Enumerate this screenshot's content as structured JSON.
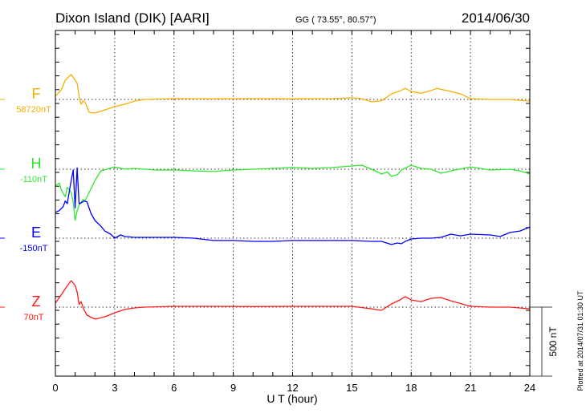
{
  "header": {
    "title": "Dixon Island (DIK)  [AARI]",
    "coords": "GG ( 73.55°,  80.57°)",
    "date": "2014/06/30"
  },
  "footer": {
    "plotted": "Plotted at 2014/07/31 01:30 UT",
    "scale_label": "500 nT"
  },
  "chart_data": {
    "type": "line",
    "title": "Dixon Island (DIK)  [AARI]",
    "xlabel": "U T (hour)",
    "xlim": [
      0,
      24
    ],
    "xticks": [
      "0",
      "3",
      "6",
      "9",
      "12",
      "15",
      "18",
      "21",
      "24"
    ],
    "scale_nT": 500,
    "grid": true,
    "series": [
      {
        "name": "F",
        "baseline": "58720nT",
        "color": "#f5b000",
        "x": [
          0,
          0.3,
          0.5,
          0.8,
          1.0,
          1.1,
          1.2,
          1.3,
          1.4,
          1.5,
          1.7,
          2.0,
          2.5,
          3.0,
          3.5,
          4.0,
          4.5,
          6,
          8,
          10,
          12,
          14,
          15,
          15.5,
          16,
          16.3,
          16.5,
          17,
          17.4,
          17.7,
          18,
          18.5,
          19,
          19.3,
          20,
          20.5,
          21,
          22,
          23,
          24
        ],
        "y": [
          23,
          70,
          140,
          180,
          140,
          116,
          23,
          -35,
          -10,
          -20,
          -93,
          -99,
          -76,
          -52,
          -35,
          -12,
          0,
          6,
          4,
          6,
          4,
          6,
          12,
          5,
          -17,
          -12,
          -10,
          40,
          60,
          80,
          58,
          45,
          64,
          80,
          58,
          40,
          6,
          0,
          0,
          -12
        ]
      },
      {
        "name": "H",
        "baseline": "-110nT",
        "color": "#2ee82e",
        "x": [
          0,
          0.2,
          0.3,
          0.5,
          0.6,
          0.8,
          0.9,
          1.0,
          1.1,
          1.2,
          1.4,
          1.5,
          1.7,
          2.0,
          2.3,
          2.6,
          3.0,
          3.5,
          4,
          5,
          6,
          7,
          8,
          9,
          10,
          11,
          12,
          13,
          14,
          15,
          15.5,
          16,
          16.3,
          16.5,
          16.8,
          17,
          17.3,
          17.5,
          18,
          18.5,
          19,
          19.5,
          19.8,
          20,
          21,
          22,
          23,
          23.5,
          24
        ],
        "y": [
          -120,
          -100,
          -150,
          -200,
          -130,
          -170,
          -240,
          -370,
          -300,
          -260,
          -220,
          -230,
          -170,
          -82,
          -12,
          0,
          17,
          0,
          6,
          -6,
          -6,
          -12,
          -17,
          -6,
          0,
          6,
          12,
          6,
          12,
          23,
          29,
          0,
          -20,
          -35,
          -20,
          -52,
          -40,
          -6,
          29,
          6,
          0,
          -29,
          -20,
          -12,
          17,
          -6,
          0,
          -12,
          -35
        ]
      },
      {
        "name": "E",
        "baseline": "-150nT",
        "color": "#0000ff",
        "x": [
          0,
          0.2,
          0.4,
          0.5,
          0.6,
          0.8,
          0.9,
          1.0,
          1.1,
          1.2,
          1.3,
          1.45,
          1.6,
          1.8,
          2.0,
          2.3,
          2.5,
          2.8,
          3.0,
          3.3,
          3.5,
          4,
          5,
          6,
          7,
          8,
          9,
          10,
          11,
          12,
          13,
          14,
          15,
          16,
          16.5,
          17,
          17.3,
          17.5,
          17.7,
          18,
          18.5,
          19,
          19.5,
          20,
          20.5,
          21,
          22,
          22.5,
          23,
          23.5,
          24
        ],
        "y": [
          186,
          200,
          230,
          270,
          250,
          420,
          494,
          220,
          510,
          250,
          255,
          270,
          262,
          180,
          128,
          87,
          52,
          29,
          0,
          23,
          12,
          6,
          6,
          6,
          0,
          -17,
          -17,
          -23,
          -23,
          -17,
          -17,
          -17,
          -17,
          -23,
          -23,
          -46,
          -35,
          -40,
          -23,
          -6,
          0,
          0,
          6,
          29,
          17,
          29,
          23,
          12,
          41,
          52,
          81
        ]
      },
      {
        "name": "Z",
        "baseline": "70nT",
        "color": "#ff1a1a",
        "x": [
          0,
          0.3,
          0.5,
          0.8,
          1.0,
          1.1,
          1.2,
          1.3,
          1.45,
          1.6,
          2.0,
          2.5,
          3.0,
          3.5,
          4.0,
          4.5,
          6,
          8,
          10,
          12,
          14,
          15,
          16,
          16.5,
          17,
          17.4,
          17.7,
          18,
          18.5,
          19,
          19.5,
          20,
          21,
          22,
          23,
          24
        ],
        "y": [
          29,
          90,
          134,
          192,
          157,
          110,
          20,
          40,
          -20,
          -58,
          -87,
          -70,
          -41,
          -17,
          -6,
          0,
          6,
          6,
          4,
          6,
          6,
          6,
          -12,
          -23,
          23,
          50,
          76,
          52,
          40,
          64,
          70,
          46,
          6,
          0,
          0,
          -12
        ]
      }
    ]
  }
}
